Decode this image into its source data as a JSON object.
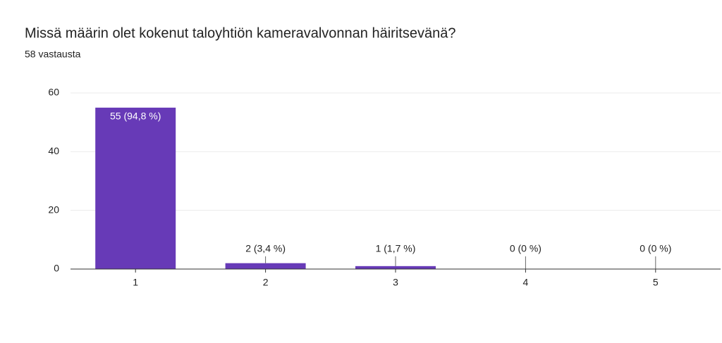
{
  "chart_data": {
    "type": "bar",
    "title": "Missä määrin olet kokenut taloyhtiön kameravalvonnan häiritsevänä?",
    "subtitle": "58 vastausta",
    "categories": [
      "1",
      "2",
      "3",
      "4",
      "5"
    ],
    "values": [
      55,
      2,
      1,
      0,
      0
    ],
    "value_labels": [
      "55 (94,8 %)",
      "2 (3,4 %)",
      "1 (1,7 %)",
      "0 (0 %)",
      "0 (0 %)"
    ],
    "color": "#673ab7",
    "ylim": [
      0,
      60
    ],
    "yticks": [
      0,
      20,
      40,
      60
    ],
    "grid": true
  }
}
